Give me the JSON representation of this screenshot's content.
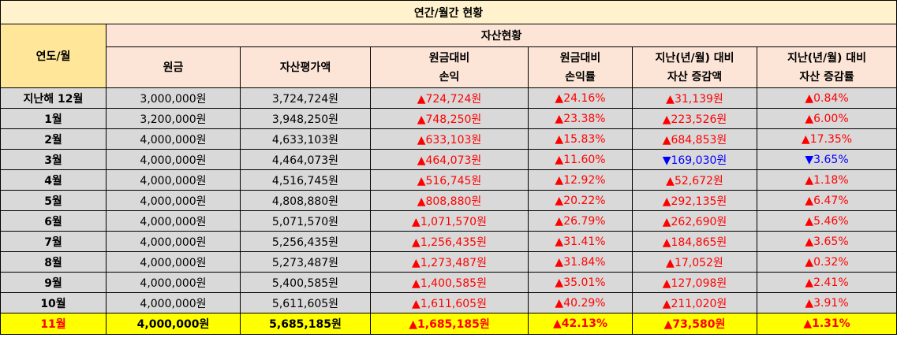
{
  "title": "연간/월간 현황",
  "headers": {
    "year_month": "연도/월",
    "asset_status": "자산현황",
    "principal": "원금",
    "valuation": "자산평가액",
    "pl_line1": "원금대비",
    "pl_line2": "손익",
    "plr_line1": "원금대비",
    "plr_line2": "손익률",
    "chg_line1": "지난(년/월) 대비",
    "chg_line2": "자산 증감액",
    "chgr_line1": "지난(년/월) 대비",
    "chgr_line2": "자산 증감률"
  },
  "colors": {
    "up": "#ff0000",
    "down": "#0000ff",
    "highlight": "#ffff00"
  },
  "rows": [
    {
      "label": "지난해 12월",
      "principal": "3,000,000원",
      "valuation": "3,724,724원",
      "pl": "▲724,724원",
      "plr": "▲24.16%",
      "chg": "▲31,139원",
      "chgr": "▲0.84%",
      "chg_dir": "up"
    },
    {
      "label": "1월",
      "principal": "3,200,000원",
      "valuation": "3,948,250원",
      "pl": "▲748,250원",
      "plr": "▲23.38%",
      "chg": "▲223,526원",
      "chgr": "▲6.00%",
      "chg_dir": "up"
    },
    {
      "label": "2월",
      "principal": "4,000,000원",
      "valuation": "4,633,103원",
      "pl": "▲633,103원",
      "plr": "▲15.83%",
      "chg": "▲684,853원",
      "chgr": "▲17.35%",
      "chg_dir": "up"
    },
    {
      "label": "3월",
      "principal": "4,000,000원",
      "valuation": "4,464,073원",
      "pl": "▲464,073원",
      "plr": "▲11.60%",
      "chg": "▼169,030원",
      "chgr": "▼3.65%",
      "chg_dir": "down"
    },
    {
      "label": "4월",
      "principal": "4,000,000원",
      "valuation": "4,516,745원",
      "pl": "▲516,745원",
      "plr": "▲12.92%",
      "chg": "▲52,672원",
      "chgr": "▲1.18%",
      "chg_dir": "up"
    },
    {
      "label": "5월",
      "principal": "4,000,000원",
      "valuation": "4,808,880원",
      "pl": "▲808,880원",
      "plr": "▲20.22%",
      "chg": "▲292,135원",
      "chgr": "▲6.47%",
      "chg_dir": "up"
    },
    {
      "label": "6월",
      "principal": "4,000,000원",
      "valuation": "5,071,570원",
      "pl": "▲1,071,570원",
      "plr": "▲26.79%",
      "chg": "▲262,690원",
      "chgr": "▲5.46%",
      "chg_dir": "up"
    },
    {
      "label": "7월",
      "principal": "4,000,000원",
      "valuation": "5,256,435원",
      "pl": "▲1,256,435원",
      "plr": "▲31.41%",
      "chg": "▲184,865원",
      "chgr": "▲3.65%",
      "chg_dir": "up"
    },
    {
      "label": "8월",
      "principal": "4,000,000원",
      "valuation": "5,273,487원",
      "pl": "▲1,273,487원",
      "plr": "▲31.84%",
      "chg": "▲17,052원",
      "chgr": "▲0.32%",
      "chg_dir": "up"
    },
    {
      "label": "9월",
      "principal": "4,000,000원",
      "valuation": "5,400,585원",
      "pl": "▲1,400,585원",
      "plr": "▲35.01%",
      "chg": "▲127,098원",
      "chgr": "▲2.41%",
      "chg_dir": "up"
    },
    {
      "label": "10월",
      "principal": "4,000,000원",
      "valuation": "5,611,605원",
      "pl": "▲1,611,605원",
      "plr": "▲40.29%",
      "chg": "▲211,020원",
      "chgr": "▲3.91%",
      "chg_dir": "up"
    }
  ],
  "current": {
    "label": "11월",
    "principal": "4,000,000원",
    "valuation": "5,685,185원",
    "pl": "▲1,685,185원",
    "plr": "▲42.13%",
    "chg": "▲73,580원",
    "chgr": "▲1.31%"
  }
}
